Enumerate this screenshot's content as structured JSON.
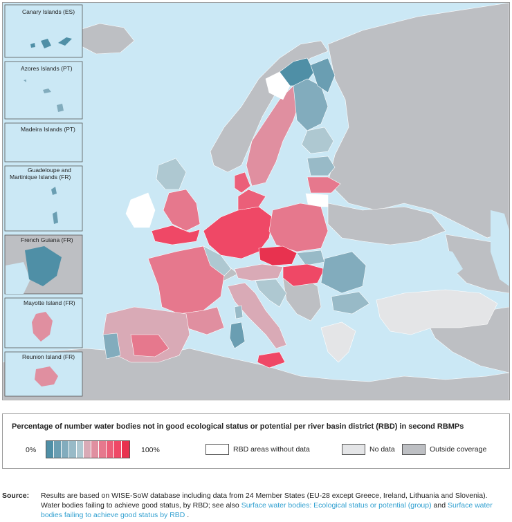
{
  "insets": [
    {
      "label": "Canary Islands (ES)"
    },
    {
      "label": "Azores Islands (PT)"
    },
    {
      "label": "Madeira Islands (PT)"
    },
    {
      "label": "Guadeloupe and",
      "label2": "Martinique Islands (FR)"
    },
    {
      "label": "French Guiana (FR)"
    },
    {
      "label": "Mayotte Island (FR)"
    },
    {
      "label": "Reunion Island (FR)"
    }
  ],
  "colors": {
    "sea": "#cbe8f5",
    "outside_coverage": "#bdbfc3",
    "no_data": "#e4e5e7",
    "no_rbd_data": "#ffffff",
    "ramp": [
      "#4f8fa6",
      "#6a9eb2",
      "#82acbd",
      "#98bac7",
      "#aec8d1",
      "#d9aab6",
      "#e08fa0",
      "#e6788d",
      "#eb5f79",
      "#ef4866",
      "#e8324f"
    ]
  },
  "legend": {
    "title": "Percentage of number water bodies not in good ecological status or potential per river basin district (RBD) in second RBMPs",
    "min_label": "0%",
    "max_label": "100%",
    "without_data_label": "RBD areas without data",
    "no_data_label": "No data",
    "outside_label": "Outside coverage"
  },
  "source": {
    "label": "Source:",
    "text1": "Results are based on WISE-SoW database including data from 24 Member States (EU-28 except Greece, Ireland, Lithuania and Slovenia).",
    "text2": "Water bodies failing to achieve good status, by RBD; see also",
    "link1": "Surface water bodies: Ecological status or potential (group)",
    "and": "and",
    "link2": "Surface water bodies failing to achieve good status by RBD",
    "end": "."
  }
}
